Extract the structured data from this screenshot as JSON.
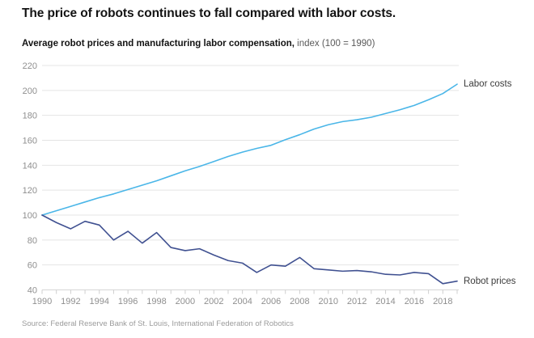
{
  "header": {
    "title": "The price of robots continues to fall compared with labor costs.",
    "subtitle_bold": "Average robot prices and manufacturing labor compensation,",
    "subtitle_note": " index (100 = 1990)"
  },
  "source_note": "Source: Federal Reserve Bank of St. Louis, International Federation of Robotics",
  "colors": {
    "labor_line": "#4ab6e8",
    "robot_line": "#405191",
    "gridline": "#e4e4e4",
    "axis_line": "#d6d6d6",
    "tick": "#cfcfcf",
    "axis_label": "#8f8f8f"
  },
  "chart_data": {
    "type": "line",
    "title": "The price of robots continues to fall compared with labor costs.",
    "subtitle": "Average robot prices and manufacturing labor compensation, index (100 = 1990)",
    "xlabel": "",
    "ylabel": "index (100 = 1990)",
    "ylim": [
      40,
      220
    ],
    "yticks": [
      40,
      60,
      80,
      100,
      120,
      140,
      160,
      180,
      200,
      220
    ],
    "xtick_labels": [
      1990,
      1992,
      1994,
      1996,
      1998,
      2000,
      2002,
      2004,
      2006,
      2008,
      2010,
      2012,
      2014,
      2016,
      2018
    ],
    "grid": "horizontal",
    "legend_position": "line-end-labels",
    "x": [
      1990,
      1991,
      1992,
      1993,
      1994,
      1995,
      1996,
      1997,
      1998,
      1999,
      2000,
      2001,
      2002,
      2003,
      2004,
      2005,
      2006,
      2007,
      2008,
      2009,
      2010,
      2011,
      2012,
      2013,
      2014,
      2015,
      2016,
      2017,
      2018,
      2019
    ],
    "series": [
      {
        "name": "Labor costs",
        "color": "#4ab6e8",
        "values": [
          100,
          103.5,
          107,
          110.5,
          114,
          117,
          120.5,
          124,
          127.5,
          131.5,
          135.5,
          139,
          143,
          147,
          150.5,
          153.5,
          156,
          160.5,
          164.5,
          169,
          172.5,
          175,
          176.5,
          178.5,
          181.5,
          184.5,
          188,
          192.5,
          197.5,
          205
        ]
      },
      {
        "name": "Robot prices",
        "color": "#405191",
        "values": [
          100,
          94,
          89,
          95,
          92,
          80,
          87,
          77.5,
          86,
          74,
          71.5,
          73,
          68,
          63.5,
          61.5,
          54,
          60,
          59,
          66,
          57,
          56,
          55,
          55.5,
          54.5,
          52.5,
          52,
          54,
          53,
          45,
          47
        ]
      }
    ]
  }
}
